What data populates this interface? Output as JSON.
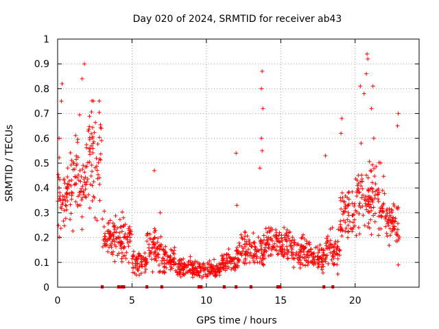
{
  "colors": {
    "points": "#ff0000",
    "background": "#ffffff",
    "grid": "#a0a0a0"
  },
  "chart_data": {
    "type": "scatter",
    "title": "Day 020 of 2024, SRMTID for receiver ab43",
    "xlabel": "GPS time / hours",
    "ylabel": "SRMTID / TECUs",
    "xlim": [
      0,
      24.3
    ],
    "ylim": [
      0,
      1
    ],
    "grid": true,
    "legend": "none",
    "marker": "plus",
    "x_ticks": [
      0,
      5,
      10,
      15,
      20
    ],
    "x_tick_labels": [
      "0",
      "5",
      "10",
      "15",
      "20"
    ],
    "y_ticks": [
      0,
      0.1,
      0.2,
      0.3,
      0.4,
      0.5,
      0.6,
      0.7,
      0.8,
      0.9,
      1
    ],
    "y_tick_labels": [
      "0",
      "0.1",
      "0.2",
      "0.3",
      "0.4",
      "0.5",
      "0.6",
      "0.7",
      "0.8",
      "0.9",
      "1"
    ],
    "hourly_envelope": [
      {
        "hour": 0,
        "mean": 0.38,
        "spread": 0.14
      },
      {
        "hour": 1,
        "mean": 0.45,
        "spread": 0.17
      },
      {
        "hour": 2,
        "mean": 0.52,
        "spread": 0.2
      },
      {
        "hour": 3,
        "mean": 0.2,
        "spread": 0.08
      },
      {
        "hour": 4,
        "mean": 0.2,
        "spread": 0.09
      },
      {
        "hour": 5,
        "mean": 0.1,
        "spread": 0.04
      },
      {
        "hour": 6,
        "mean": 0.15,
        "spread": 0.08
      },
      {
        "hour": 7,
        "mean": 0.11,
        "spread": 0.05
      },
      {
        "hour": 8,
        "mean": 0.08,
        "spread": 0.04
      },
      {
        "hour": 9,
        "mean": 0.07,
        "spread": 0.03
      },
      {
        "hour": 10,
        "mean": 0.07,
        "spread": 0.03
      },
      {
        "hour": 11,
        "mean": 0.1,
        "spread": 0.04
      },
      {
        "hour": 12,
        "mean": 0.15,
        "spread": 0.06
      },
      {
        "hour": 13,
        "mean": 0.15,
        "spread": 0.06
      },
      {
        "hour": 14,
        "mean": 0.19,
        "spread": 0.07
      },
      {
        "hour": 15,
        "mean": 0.16,
        "spread": 0.07
      },
      {
        "hour": 16,
        "mean": 0.14,
        "spread": 0.06
      },
      {
        "hour": 17,
        "mean": 0.12,
        "spread": 0.05
      },
      {
        "hour": 18,
        "mean": 0.15,
        "spread": 0.07
      },
      {
        "hour": 19,
        "mean": 0.3,
        "spread": 0.1
      },
      {
        "hour": 20,
        "mean": 0.35,
        "spread": 0.12
      },
      {
        "hour": 21,
        "mean": 0.35,
        "spread": 0.12
      },
      {
        "hour": 22,
        "mean": 0.26,
        "spread": 0.08
      },
      {
        "hour": 23,
        "mean": 0.2,
        "spread": 0.06
      }
    ],
    "notable_points": [
      {
        "x": 1.8,
        "y": 0.9
      },
      {
        "x": 1.65,
        "y": 0.84
      },
      {
        "x": 0.3,
        "y": 0.82
      },
      {
        "x": 0.25,
        "y": 0.75
      },
      {
        "x": 0.1,
        "y": 0.6
      },
      {
        "x": 2.4,
        "y": 0.75
      },
      {
        "x": 6.5,
        "y": 0.47
      },
      {
        "x": 6.9,
        "y": 0.3
      },
      {
        "x": 12.0,
        "y": 0.54
      },
      {
        "x": 12.05,
        "y": 0.33
      },
      {
        "x": 13.75,
        "y": 0.87
      },
      {
        "x": 13.7,
        "y": 0.8
      },
      {
        "x": 13.8,
        "y": 0.72
      },
      {
        "x": 13.7,
        "y": 0.6
      },
      {
        "x": 13.75,
        "y": 0.55
      },
      {
        "x": 13.6,
        "y": 0.48
      },
      {
        "x": 18.0,
        "y": 0.53
      },
      {
        "x": 19.1,
        "y": 0.68
      },
      {
        "x": 19.05,
        "y": 0.62
      },
      {
        "x": 20.35,
        "y": 0.81
      },
      {
        "x": 20.6,
        "y": 0.78
      },
      {
        "x": 20.8,
        "y": 0.94
      },
      {
        "x": 20.85,
        "y": 0.92
      },
      {
        "x": 20.75,
        "y": 0.86
      },
      {
        "x": 21.2,
        "y": 0.81
      },
      {
        "x": 21.1,
        "y": 0.72
      },
      {
        "x": 21.25,
        "y": 0.6
      },
      {
        "x": 20.4,
        "y": 0.58
      },
      {
        "x": 22.9,
        "y": 0.7
      },
      {
        "x": 22.85,
        "y": 0.65
      },
      {
        "x": 22.9,
        "y": 0.09
      }
    ],
    "baseline_markers": [
      3.0,
      4.1,
      4.3,
      4.45,
      6.0,
      7.0,
      9.5,
      9.65,
      11.2,
      12.0,
      13.0,
      14.8,
      14.95,
      17.9,
      18.5
    ]
  }
}
